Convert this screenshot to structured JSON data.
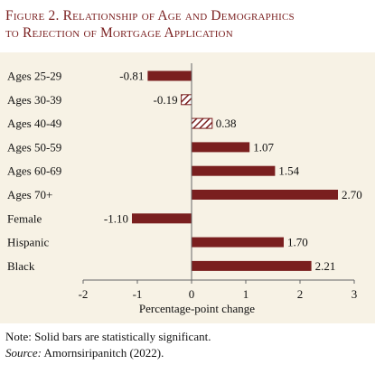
{
  "figure": {
    "title_line1": "Figure 2. Relationship of Age and Demographics",
    "title_line2": "to Rejection of Mortgage Application",
    "note": "Note: Solid bars are statistically significant.",
    "source_label": "Source:",
    "source_text": " Amornsiripanitch (2022)."
  },
  "colors": {
    "bar": "#7a1f1f",
    "title": "#7a1f1f",
    "panel_bg": "#f7f2e5"
  },
  "chart_data": {
    "type": "bar",
    "orientation": "horizontal",
    "title": "",
    "xlabel": "Percentage-point change",
    "ylabel": "",
    "xlim": [
      -2,
      3
    ],
    "xticks": [
      -2,
      -1,
      0,
      1,
      2,
      3
    ],
    "grid": false,
    "legend": "none",
    "categories": [
      "Ages 25-29",
      "Ages 30-39",
      "Ages 40-49",
      "Ages 50-59",
      "Ages 60-69",
      "Ages 70+",
      "Female",
      "Hispanic",
      "Black"
    ],
    "values": [
      -0.81,
      -0.19,
      0.38,
      1.07,
      1.54,
      2.7,
      -1.1,
      1.7,
      2.21
    ],
    "value_labels": [
      "-0.81",
      "-0.19",
      "0.38",
      "1.07",
      "1.54",
      "2.70",
      "-1.10",
      "1.70",
      "2.21"
    ],
    "significant": [
      true,
      false,
      false,
      true,
      true,
      true,
      true,
      true,
      true
    ]
  }
}
